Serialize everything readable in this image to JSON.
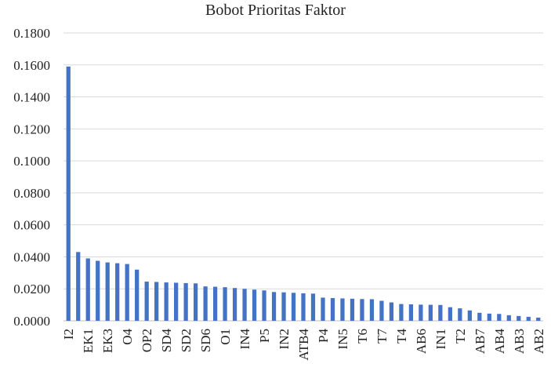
{
  "chart_data": {
    "type": "bar",
    "title": "Bobot Prioritas Faktor",
    "xlabel": "",
    "ylabel": "",
    "ylim": [
      0,
      0.18
    ],
    "y_ticks": [
      "0.0000",
      "0.0200",
      "0.0400",
      "0.0600",
      "0.0800",
      "0.1000",
      "0.1200",
      "0.1400",
      "0.1600",
      "0.1800"
    ],
    "grid": true,
    "legend": "none",
    "bar_color": "#4472C4",
    "categories": [
      "I2",
      "",
      "EK1",
      "",
      "EK3",
      "",
      "O4",
      "",
      "OP2",
      "",
      "SD4",
      "",
      "SD2",
      "",
      "SD6",
      "",
      "O1",
      "",
      "IN4",
      "",
      "P5",
      "",
      "IN2",
      "",
      "ATB4",
      "",
      "P4",
      "",
      "IN5",
      "",
      "T6",
      "",
      "T7",
      "",
      "T4",
      "",
      "AB6",
      "",
      "IN1",
      "",
      "T2",
      "",
      "AB7",
      "",
      "AB4",
      "",
      "AB3",
      "",
      "AB2"
    ],
    "values": [
      0.159,
      0.043,
      0.039,
      0.0375,
      0.0365,
      0.036,
      0.0355,
      0.032,
      0.0245,
      0.0243,
      0.024,
      0.0238,
      0.0236,
      0.0234,
      0.0215,
      0.0213,
      0.021,
      0.0205,
      0.02,
      0.0195,
      0.019,
      0.018,
      0.0178,
      0.0175,
      0.0172,
      0.017,
      0.0145,
      0.0142,
      0.014,
      0.0138,
      0.0136,
      0.0135,
      0.0125,
      0.0115,
      0.0105,
      0.0103,
      0.0101,
      0.01,
      0.0099,
      0.0085,
      0.0078,
      0.0065,
      0.005,
      0.0045,
      0.0043,
      0.0035,
      0.003,
      0.0025,
      0.002
    ]
  }
}
